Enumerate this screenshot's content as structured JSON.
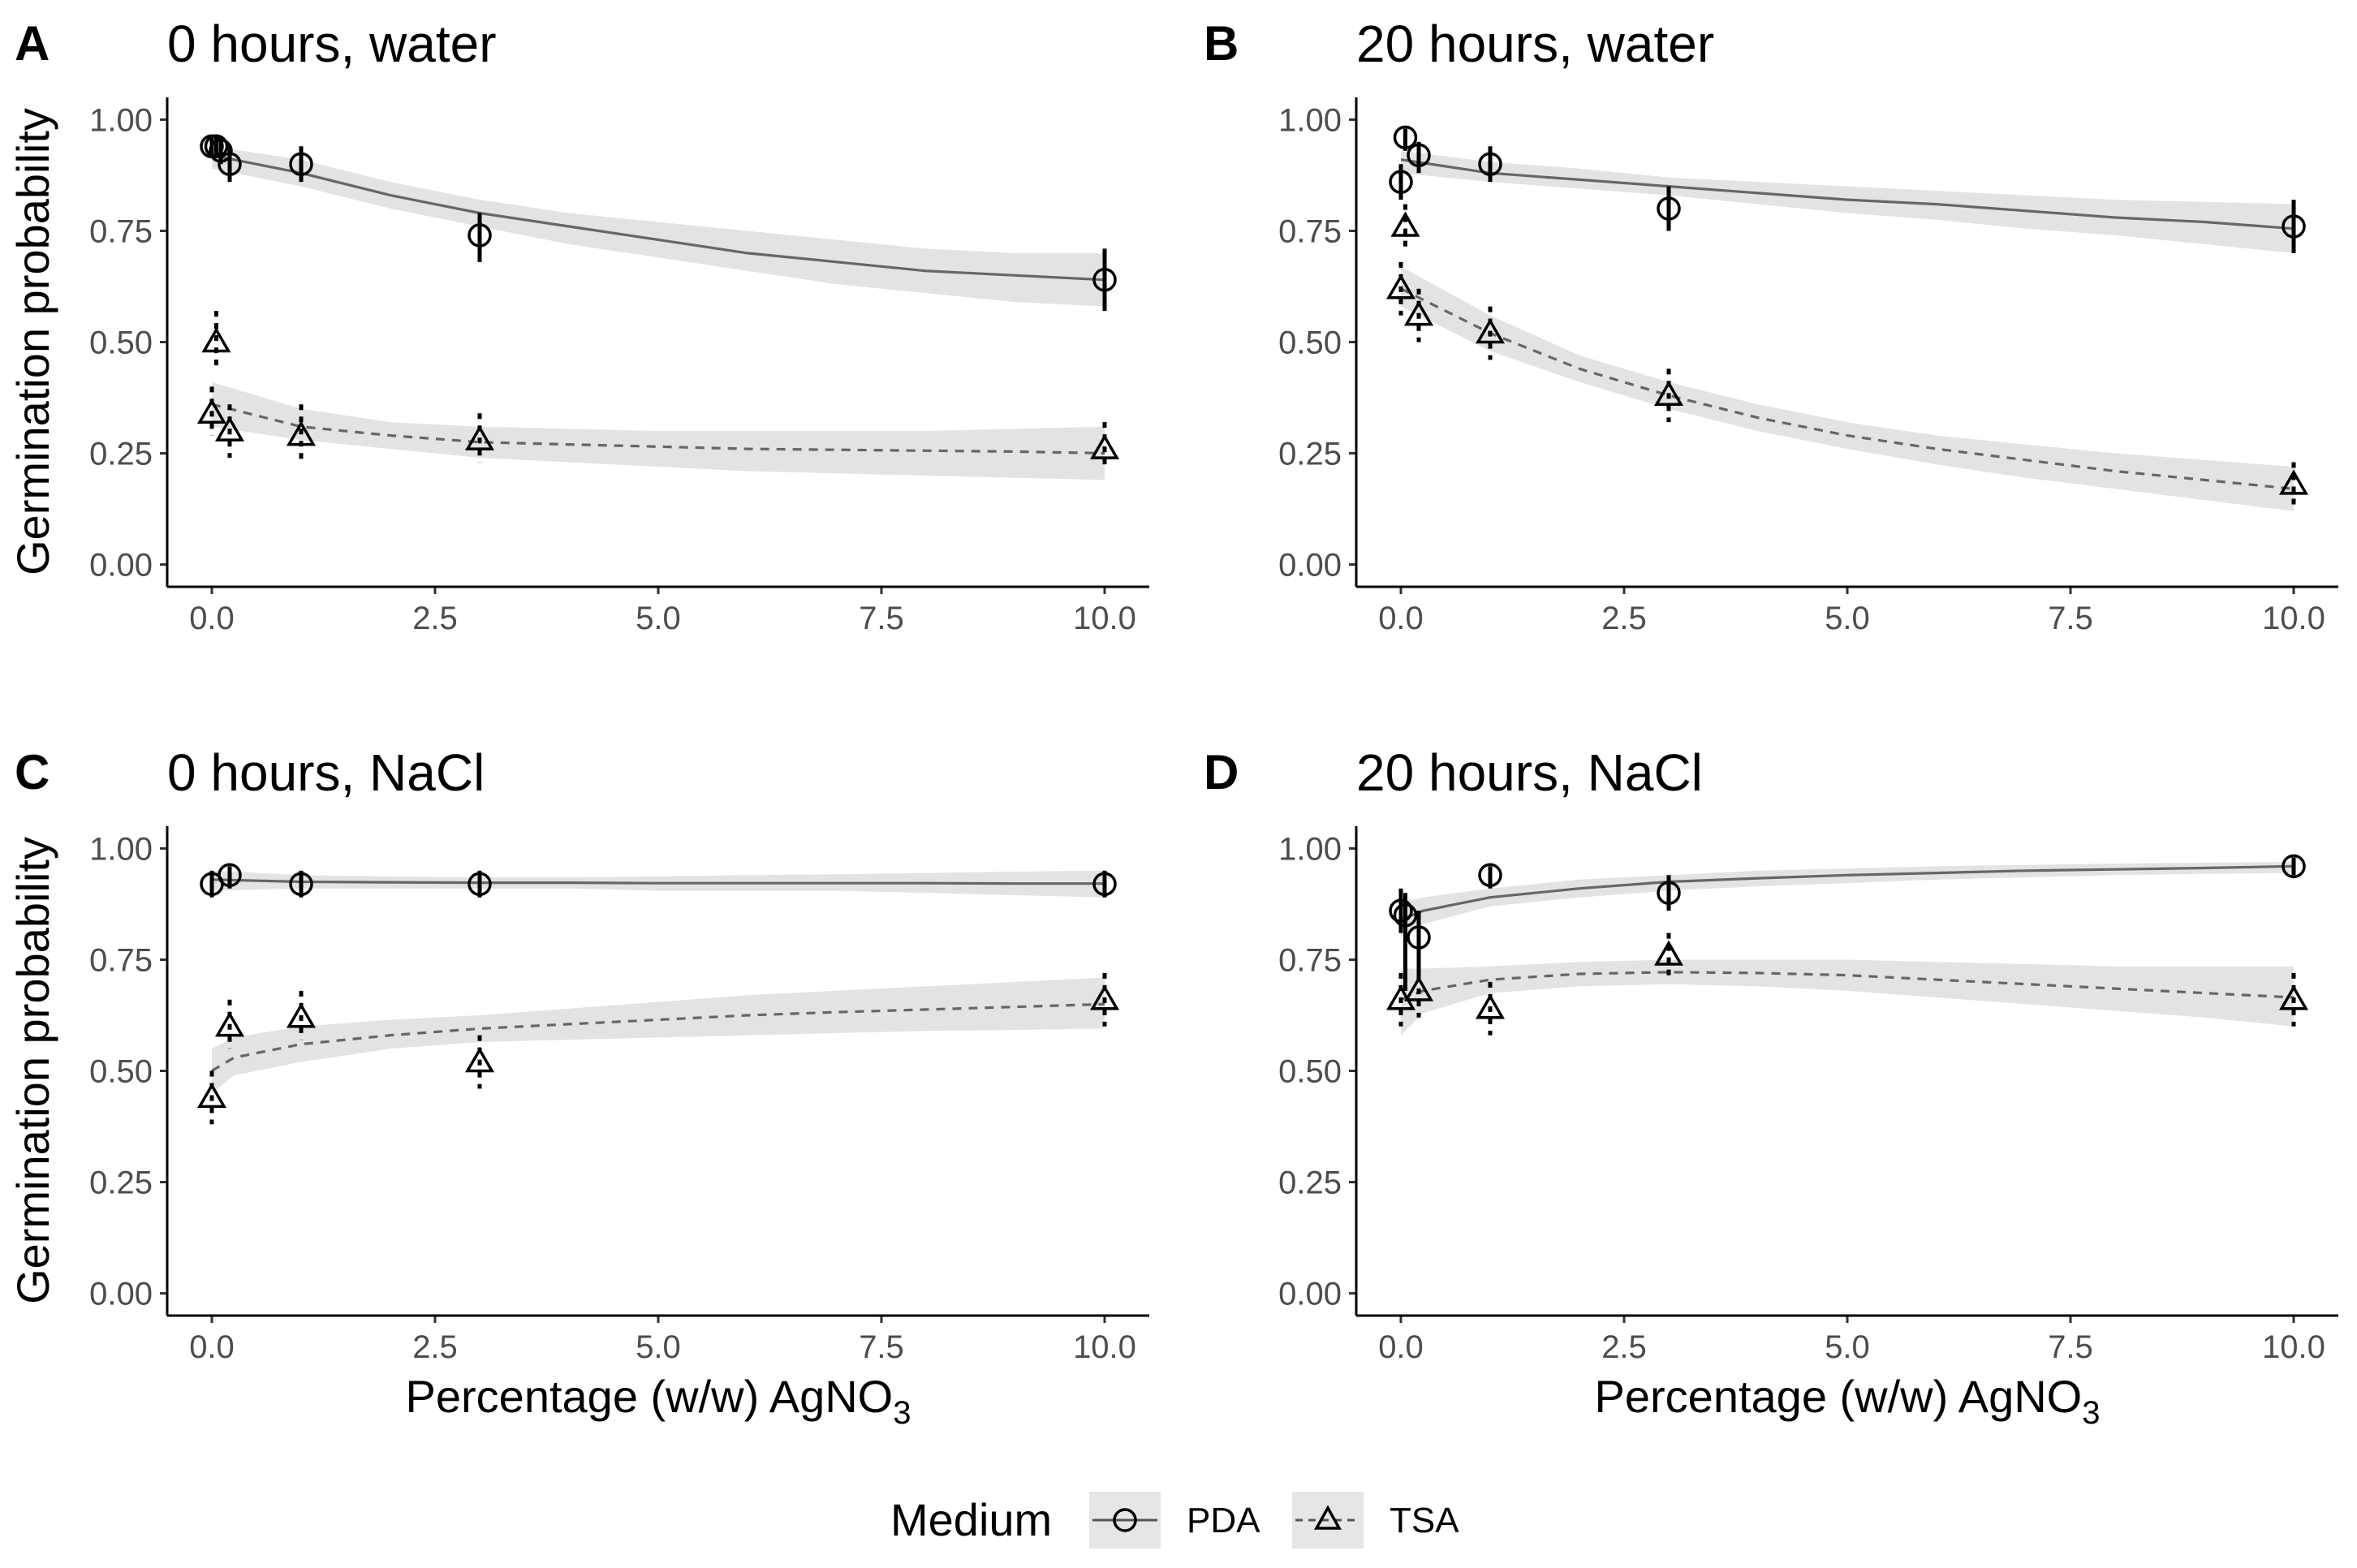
{
  "chart_data": [
    {
      "type": "line",
      "panel": "A",
      "title": "0 hours, water",
      "xlabel": "",
      "ylabel": "Germination probability",
      "xlim": [
        -0.5,
        10.5
      ],
      "ylim": [
        -0.05,
        1.05
      ],
      "xticks": [
        0,
        2.5,
        5,
        7.5,
        10
      ],
      "xtick_labels": [
        "0.0",
        "2.5",
        "5.0",
        "7.5",
        "10.0"
      ],
      "yticks": [
        0,
        0.25,
        0.5,
        0.75,
        1
      ],
      "ytick_labels": [
        "0.00",
        "0.25",
        "0.50",
        "0.75",
        "1.00"
      ],
      "series": [
        {
          "name": "PDA",
          "points": [
            {
              "x": 0,
              "y": 0.94,
              "lo": 0.92,
              "hi": 0.96
            },
            {
              "x": 0.05,
              "y": 0.94,
              "lo": 0.92,
              "hi": 0.96
            },
            {
              "x": 0.1,
              "y": 0.93,
              "lo": 0.9,
              "hi": 0.96
            },
            {
              "x": 0.2,
              "y": 0.9,
              "lo": 0.86,
              "hi": 0.94
            },
            {
              "x": 1,
              "y": 0.9,
              "lo": 0.86,
              "hi": 0.94
            },
            {
              "x": 3,
              "y": 0.74,
              "lo": 0.68,
              "hi": 0.79
            },
            {
              "x": 10,
              "y": 0.64,
              "lo": 0.57,
              "hi": 0.71
            }
          ],
          "fit": {
            "x": [
              0,
              1,
              2,
              3,
              4,
              5,
              6,
              7,
              8,
              9,
              10
            ],
            "y": [
              0.92,
              0.88,
              0.83,
              0.79,
              0.76,
              0.73,
              0.7,
              0.68,
              0.66,
              0.65,
              0.64
            ],
            "lo": [
              0.89,
              0.85,
              0.8,
              0.76,
              0.72,
              0.69,
              0.66,
              0.63,
              0.61,
              0.59,
              0.58
            ],
            "hi": [
              0.94,
              0.91,
              0.86,
              0.82,
              0.79,
              0.77,
              0.75,
              0.73,
              0.71,
              0.7,
              0.7
            ]
          }
        },
        {
          "name": "TSA",
          "points": [
            {
              "x": 0,
              "y": 0.34,
              "lo": 0.29,
              "hi": 0.4
            },
            {
              "x": 0.05,
              "y": 0.5,
              "lo": 0.44,
              "hi": 0.57
            },
            {
              "x": 0.2,
              "y": 0.3,
              "lo": 0.24,
              "hi": 0.36
            },
            {
              "x": 1,
              "y": 0.29,
              "lo": 0.23,
              "hi": 0.36
            },
            {
              "x": 3,
              "y": 0.28,
              "lo": 0.23,
              "hi": 0.34
            },
            {
              "x": 10,
              "y": 0.26,
              "lo": 0.22,
              "hi": 0.32
            }
          ],
          "fit": {
            "x": [
              0,
              1,
              2,
              3,
              4,
              5,
              6,
              7,
              8,
              9,
              10
            ],
            "y": [
              0.36,
              0.31,
              0.29,
              0.275,
              0.27,
              0.265,
              0.26,
              0.258,
              0.256,
              0.254,
              0.25
            ],
            "lo": [
              0.31,
              0.28,
              0.26,
              0.24,
              0.23,
              0.22,
              0.21,
              0.205,
              0.2,
              0.195,
              0.19
            ],
            "hi": [
              0.41,
              0.35,
              0.32,
              0.31,
              0.305,
              0.3,
              0.3,
              0.3,
              0.3,
              0.305,
              0.31
            ]
          }
        }
      ]
    },
    {
      "type": "line",
      "panel": "B",
      "title": "20 hours, water",
      "xlabel": "",
      "ylabel": "",
      "xlim": [
        -0.5,
        10.5
      ],
      "ylim": [
        -0.05,
        1.05
      ],
      "xticks": [
        0,
        2.5,
        5,
        7.5,
        10
      ],
      "xtick_labels": [
        "0.0",
        "2.5",
        "5.0",
        "7.5",
        "10.0"
      ],
      "yticks": [
        0,
        0.25,
        0.5,
        0.75,
        1
      ],
      "ytick_labels": [
        "0.00",
        "0.25",
        "0.50",
        "0.75",
        "1.00"
      ],
      "series": [
        {
          "name": "PDA",
          "points": [
            {
              "x": 0,
              "y": 0.86,
              "lo": 0.82,
              "hi": 0.9
            },
            {
              "x": 0.05,
              "y": 0.96,
              "lo": 0.93,
              "hi": 0.98
            },
            {
              "x": 0.2,
              "y": 0.92,
              "lo": 0.88,
              "hi": 0.95
            },
            {
              "x": 1,
              "y": 0.9,
              "lo": 0.86,
              "hi": 0.94
            },
            {
              "x": 3,
              "y": 0.8,
              "lo": 0.75,
              "hi": 0.85
            },
            {
              "x": 10,
              "y": 0.76,
              "lo": 0.7,
              "hi": 0.82
            }
          ],
          "fit": {
            "x": [
              0,
              1,
              2,
              3,
              4,
              5,
              6,
              7,
              8,
              9,
              10
            ],
            "y": [
              0.91,
              0.88,
              0.865,
              0.85,
              0.835,
              0.82,
              0.81,
              0.795,
              0.78,
              0.77,
              0.755
            ],
            "lo": [
              0.88,
              0.86,
              0.845,
              0.83,
              0.81,
              0.79,
              0.775,
              0.755,
              0.74,
              0.72,
              0.7
            ],
            "hi": [
              0.93,
              0.905,
              0.89,
              0.87,
              0.86,
              0.85,
              0.84,
              0.83,
              0.82,
              0.815,
              0.81
            ]
          }
        },
        {
          "name": "TSA",
          "points": [
            {
              "x": 0,
              "y": 0.62,
              "lo": 0.56,
              "hi": 0.68
            },
            {
              "x": 0.05,
              "y": 0.76,
              "lo": 0.71,
              "hi": 0.81
            },
            {
              "x": 0.2,
              "y": 0.56,
              "lo": 0.5,
              "hi": 0.62
            },
            {
              "x": 1,
              "y": 0.52,
              "lo": 0.46,
              "hi": 0.58
            },
            {
              "x": 3,
              "y": 0.38,
              "lo": 0.32,
              "hi": 0.44
            },
            {
              "x": 10,
              "y": 0.18,
              "lo": 0.13,
              "hi": 0.23
            }
          ],
          "fit": {
            "x": [
              0,
              1,
              2,
              3,
              4,
              5,
              6,
              7,
              8,
              9,
              10
            ],
            "y": [
              0.62,
              0.52,
              0.44,
              0.38,
              0.33,
              0.29,
              0.26,
              0.235,
              0.21,
              0.19,
              0.17
            ],
            "lo": [
              0.58,
              0.48,
              0.41,
              0.35,
              0.3,
              0.26,
              0.225,
              0.195,
              0.17,
              0.145,
              0.12
            ],
            "hi": [
              0.67,
              0.56,
              0.47,
              0.41,
              0.36,
              0.32,
              0.29,
              0.27,
              0.25,
              0.235,
              0.22
            ]
          }
        }
      ]
    },
    {
      "type": "line",
      "panel": "C",
      "title": "0 hours, NaCl",
      "xlabel": "Percentage (w/w) AgNO",
      "xlabel_sub": "3",
      "ylabel": "Germination probability",
      "xlim": [
        -0.5,
        10.5
      ],
      "ylim": [
        -0.05,
        1.05
      ],
      "xticks": [
        0,
        2.5,
        5,
        7.5,
        10
      ],
      "xtick_labels": [
        "0.0",
        "2.5",
        "5.0",
        "7.5",
        "10.0"
      ],
      "yticks": [
        0,
        0.25,
        0.5,
        0.75,
        1
      ],
      "ytick_labels": [
        "0.00",
        "0.25",
        "0.50",
        "0.75",
        "1.00"
      ],
      "series": [
        {
          "name": "PDA",
          "points": [
            {
              "x": 0,
              "y": 0.92,
              "lo": 0.89,
              "hi": 0.95
            },
            {
              "x": 0.2,
              "y": 0.94,
              "lo": 0.91,
              "hi": 0.96
            },
            {
              "x": 1,
              "y": 0.92,
              "lo": 0.89,
              "hi": 0.95
            },
            {
              "x": 3,
              "y": 0.92,
              "lo": 0.89,
              "hi": 0.95
            },
            {
              "x": 10,
              "y": 0.92,
              "lo": 0.89,
              "hi": 0.95
            }
          ],
          "fit": {
            "x": [
              0,
              1,
              2,
              3,
              4,
              5,
              6,
              7,
              8,
              9,
              10
            ],
            "y": [
              0.93,
              0.925,
              0.924,
              0.923,
              0.923,
              0.922,
              0.922,
              0.922,
              0.922,
              0.921,
              0.921
            ],
            "lo": [
              0.905,
              0.91,
              0.91,
              0.91,
              0.91,
              0.905,
              0.905,
              0.905,
              0.9,
              0.895,
              0.89
            ],
            "hi": [
              0.95,
              0.94,
              0.937,
              0.935,
              0.935,
              0.937,
              0.94,
              0.942,
              0.945,
              0.948,
              0.95
            ]
          }
        },
        {
          "name": "TSA",
          "points": [
            {
              "x": 0,
              "y": 0.44,
              "lo": 0.38,
              "hi": 0.5
            },
            {
              "x": 0.2,
              "y": 0.6,
              "lo": 0.55,
              "hi": 0.66
            },
            {
              "x": 1,
              "y": 0.62,
              "lo": 0.57,
              "hi": 0.68
            },
            {
              "x": 3,
              "y": 0.52,
              "lo": 0.46,
              "hi": 0.58
            },
            {
              "x": 10,
              "y": 0.66,
              "lo": 0.6,
              "hi": 0.72
            }
          ],
          "fit": {
            "x": [
              0,
              0.25,
              1,
              2,
              3,
              4,
              5,
              6,
              7,
              8,
              9,
              10
            ],
            "y": [
              0.5,
              0.53,
              0.56,
              0.58,
              0.595,
              0.605,
              0.615,
              0.625,
              0.632,
              0.638,
              0.644,
              0.65
            ],
            "lo": [
              0.45,
              0.49,
              0.52,
              0.55,
              0.565,
              0.57,
              0.575,
              0.58,
              0.585,
              0.59,
              0.592,
              0.595
            ],
            "hi": [
              0.55,
              0.575,
              0.6,
              0.615,
              0.625,
              0.64,
              0.655,
              0.67,
              0.68,
              0.69,
              0.7,
              0.71
            ]
          }
        }
      ]
    },
    {
      "type": "line",
      "panel": "D",
      "title": "20 hours, NaCl",
      "xlabel": "Percentage (w/w) AgNO",
      "xlabel_sub": "3",
      "ylabel": "",
      "xlim": [
        -0.5,
        10.5
      ],
      "ylim": [
        -0.05,
        1.05
      ],
      "xticks": [
        0,
        2.5,
        5,
        7.5,
        10
      ],
      "xtick_labels": [
        "0.0",
        "2.5",
        "5.0",
        "7.5",
        "10.0"
      ],
      "yticks": [
        0,
        0.25,
        0.5,
        0.75,
        1
      ],
      "ytick_labels": [
        "0.00",
        "0.25",
        "0.50",
        "0.75",
        "1.00"
      ],
      "series": [
        {
          "name": "PDA",
          "points": [
            {
              "x": 0,
              "y": 0.86,
              "lo": 0.81,
              "hi": 0.91
            },
            {
              "x": 0.05,
              "y": 0.85,
              "lo": 0.68,
              "hi": 0.9
            },
            {
              "x": 0.2,
              "y": 0.8,
              "lo": 0.7,
              "hi": 0.86
            },
            {
              "x": 1,
              "y": 0.94,
              "lo": 0.91,
              "hi": 0.96
            },
            {
              "x": 3,
              "y": 0.9,
              "lo": 0.86,
              "hi": 0.94
            },
            {
              "x": 10,
              "y": 0.96,
              "lo": 0.94,
              "hi": 0.98
            }
          ],
          "fit": {
            "x": [
              0,
              0.25,
              1,
              2,
              3,
              4,
              5,
              6,
              7,
              8,
              9,
              10
            ],
            "y": [
              0.84,
              0.86,
              0.89,
              0.91,
              0.925,
              0.933,
              0.94,
              0.945,
              0.95,
              0.953,
              0.956,
              0.96
            ],
            "lo": [
              0.8,
              0.83,
              0.87,
              0.89,
              0.905,
              0.915,
              0.922,
              0.93,
              0.935,
              0.94,
              0.943,
              0.945
            ],
            "hi": [
              0.88,
              0.89,
              0.91,
              0.93,
              0.94,
              0.95,
              0.955,
              0.96,
              0.963,
              0.966,
              0.968,
              0.97
            ]
          }
        },
        {
          "name": "TSA",
          "points": [
            {
              "x": 0,
              "y": 0.66,
              "lo": 0.6,
              "hi": 0.72
            },
            {
              "x": 0.2,
              "y": 0.68,
              "lo": 0.62,
              "hi": 0.74
            },
            {
              "x": 1,
              "y": 0.64,
              "lo": 0.58,
              "hi": 0.7
            },
            {
              "x": 3,
              "y": 0.76,
              "lo": 0.71,
              "hi": 0.81
            },
            {
              "x": 10,
              "y": 0.66,
              "lo": 0.6,
              "hi": 0.72
            }
          ],
          "fit": {
            "x": [
              0,
              0.25,
              1,
              2,
              3,
              4,
              5,
              6,
              7,
              8,
              9,
              10
            ],
            "y": [
              0.66,
              0.68,
              0.705,
              0.718,
              0.722,
              0.72,
              0.715,
              0.705,
              0.695,
              0.685,
              0.675,
              0.665
            ],
            "lo": [
              0.58,
              0.63,
              0.675,
              0.69,
              0.695,
              0.69,
              0.68,
              0.665,
              0.65,
              0.635,
              0.62,
              0.6
            ],
            "hi": [
              0.73,
              0.73,
              0.735,
              0.745,
              0.75,
              0.75,
              0.75,
              0.745,
              0.74,
              0.735,
              0.735,
              0.735
            ]
          }
        }
      ]
    }
  ],
  "legend": {
    "title": "Medium",
    "items": [
      {
        "label": "PDA",
        "marker": "circle",
        "linetype": "solid"
      },
      {
        "label": "TSA",
        "marker": "triangle",
        "linetype": "dashed"
      }
    ]
  },
  "colors": {
    "line": "#666666",
    "ribbon": "#d9d9d9",
    "marker": "#000000",
    "axis": "#000000",
    "tick_text": "#4d4d4d"
  }
}
